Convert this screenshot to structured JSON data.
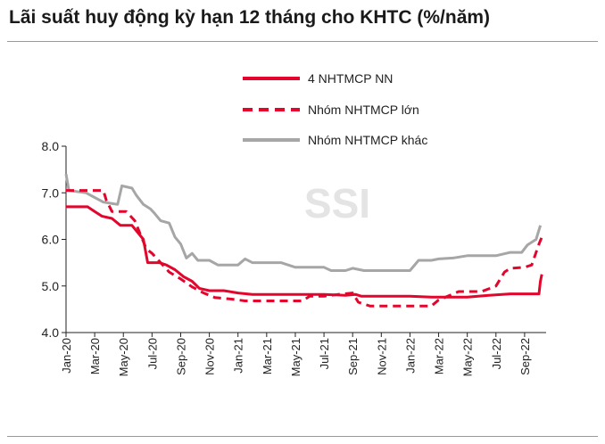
{
  "chart_data": {
    "type": "line",
    "title": "Lãi suất huy động kỳ hạn 12 tháng cho KHTC (%/năm)",
    "watermark": "SSI",
    "ylim": [
      4.0,
      8.0
    ],
    "yticks": [
      "4.0",
      "5.0",
      "6.0",
      "7.0",
      "8.0"
    ],
    "xlim": [
      0,
      33.5
    ],
    "xticks": [
      {
        "x": 0,
        "label": "Jan-20"
      },
      {
        "x": 2,
        "label": "Mar-20"
      },
      {
        "x": 4,
        "label": "May-20"
      },
      {
        "x": 6,
        "label": "Jul-20"
      },
      {
        "x": 8,
        "label": "Sep-20"
      },
      {
        "x": 10,
        "label": "Nov-20"
      },
      {
        "x": 12,
        "label": "Jan-21"
      },
      {
        "x": 14,
        "label": "Mar-21"
      },
      {
        "x": 16,
        "label": "May-21"
      },
      {
        "x": 18,
        "label": "Jul-21"
      },
      {
        "x": 20,
        "label": "Sep-21"
      },
      {
        "x": 22,
        "label": "Nov-21"
      },
      {
        "x": 24,
        "label": "Jan-22"
      },
      {
        "x": 26,
        "label": "Mar-22"
      },
      {
        "x": 28,
        "label": "May-22"
      },
      {
        "x": 30,
        "label": "Jul-22"
      },
      {
        "x": 32,
        "label": "Sep-22"
      }
    ],
    "legend_position": "top-right",
    "series": [
      {
        "name": "4 NHTMCP NN",
        "color": "#e3052c",
        "style": "solid",
        "points": [
          [
            0,
            6.7
          ],
          [
            1.5,
            6.7
          ],
          [
            2.0,
            6.6
          ],
          [
            2.5,
            6.5
          ],
          [
            3.2,
            6.45
          ],
          [
            3.8,
            6.3
          ],
          [
            4.6,
            6.3
          ],
          [
            5.0,
            6.15
          ],
          [
            5.4,
            6.0
          ],
          [
            5.7,
            5.5
          ],
          [
            6.5,
            5.5
          ],
          [
            7.0,
            5.45
          ],
          [
            7.6,
            5.35
          ],
          [
            8.2,
            5.2
          ],
          [
            8.8,
            5.1
          ],
          [
            9.3,
            4.95
          ],
          [
            10.0,
            4.9
          ],
          [
            11.0,
            4.9
          ],
          [
            12.0,
            4.85
          ],
          [
            13.0,
            4.82
          ],
          [
            16.0,
            4.82
          ],
          [
            18.0,
            4.82
          ],
          [
            19.5,
            4.8
          ],
          [
            20.2,
            4.82
          ],
          [
            20.6,
            4.78
          ],
          [
            22.0,
            4.78
          ],
          [
            24.0,
            4.78
          ],
          [
            25.5,
            4.76
          ],
          [
            28.0,
            4.76
          ],
          [
            29.5,
            4.8
          ],
          [
            31.0,
            4.83
          ],
          [
            33.0,
            4.83
          ],
          [
            33.1,
            5.1
          ],
          [
            33.2,
            5.25
          ]
        ]
      },
      {
        "name": "Nhóm NHTMCP lớn",
        "color": "#e3052c",
        "style": "dashed",
        "points": [
          [
            0,
            7.05
          ],
          [
            0.4,
            7.05
          ],
          [
            2.6,
            7.05
          ],
          [
            2.8,
            6.85
          ],
          [
            3.2,
            6.6
          ],
          [
            4.2,
            6.6
          ],
          [
            4.8,
            6.4
          ],
          [
            5.2,
            6.1
          ],
          [
            5.6,
            5.8
          ],
          [
            6.0,
            5.7
          ],
          [
            6.6,
            5.5
          ],
          [
            7.2,
            5.3
          ],
          [
            8.0,
            5.15
          ],
          [
            8.8,
            4.98
          ],
          [
            9.6,
            4.85
          ],
          [
            10.4,
            4.75
          ],
          [
            11.5,
            4.72
          ],
          [
            12.5,
            4.68
          ],
          [
            14.0,
            4.68
          ],
          [
            16.5,
            4.68
          ],
          [
            17.0,
            4.78
          ],
          [
            18.0,
            4.78
          ],
          [
            19.0,
            4.82
          ],
          [
            20.0,
            4.85
          ],
          [
            20.4,
            4.65
          ],
          [
            21.2,
            4.57
          ],
          [
            23.0,
            4.57
          ],
          [
            25.5,
            4.57
          ],
          [
            26.0,
            4.7
          ],
          [
            26.8,
            4.8
          ],
          [
            27.4,
            4.88
          ],
          [
            29.0,
            4.88
          ],
          [
            30.0,
            5.0
          ],
          [
            30.6,
            5.3
          ],
          [
            31.0,
            5.38
          ],
          [
            32.0,
            5.4
          ],
          [
            32.5,
            5.45
          ],
          [
            33.0,
            5.9
          ],
          [
            33.2,
            6.05
          ]
        ]
      },
      {
        "name": "Nhóm NHTMCP khác",
        "color": "#a6a6a6",
        "style": "solid",
        "points": [
          [
            0,
            7.4
          ],
          [
            0.2,
            7.05
          ],
          [
            1.4,
            7.0
          ],
          [
            2.0,
            6.9
          ],
          [
            2.6,
            6.8
          ],
          [
            3.6,
            6.75
          ],
          [
            3.9,
            7.15
          ],
          [
            4.6,
            7.1
          ],
          [
            4.9,
            6.95
          ],
          [
            5.4,
            6.75
          ],
          [
            5.9,
            6.65
          ],
          [
            6.2,
            6.55
          ],
          [
            6.6,
            6.4
          ],
          [
            7.2,
            6.35
          ],
          [
            7.6,
            6.05
          ],
          [
            8.0,
            5.9
          ],
          [
            8.4,
            5.6
          ],
          [
            8.8,
            5.7
          ],
          [
            9.2,
            5.55
          ],
          [
            10.0,
            5.55
          ],
          [
            10.6,
            5.45
          ],
          [
            12.0,
            5.45
          ],
          [
            12.5,
            5.58
          ],
          [
            13.0,
            5.5
          ],
          [
            15.0,
            5.5
          ],
          [
            16.0,
            5.4
          ],
          [
            18.0,
            5.4
          ],
          [
            18.5,
            5.33
          ],
          [
            19.5,
            5.33
          ],
          [
            20.0,
            5.38
          ],
          [
            20.8,
            5.33
          ],
          [
            24.0,
            5.33
          ],
          [
            24.6,
            5.55
          ],
          [
            25.5,
            5.55
          ],
          [
            26.0,
            5.58
          ],
          [
            27.0,
            5.6
          ],
          [
            28.0,
            5.65
          ],
          [
            30.0,
            5.65
          ],
          [
            31.0,
            5.72
          ],
          [
            31.8,
            5.72
          ],
          [
            32.2,
            5.88
          ],
          [
            32.8,
            6.0
          ],
          [
            33.1,
            6.3
          ]
        ]
      }
    ]
  }
}
